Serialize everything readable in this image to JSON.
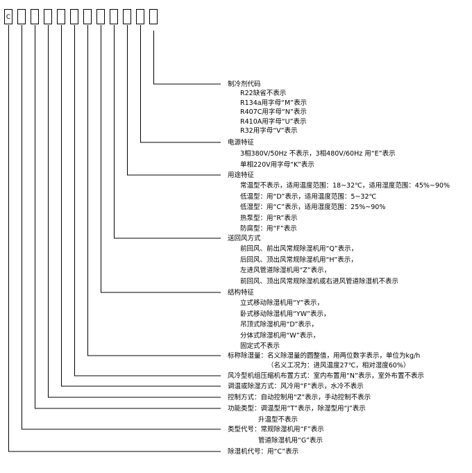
{
  "code_prefix": "C",
  "code_box_count": 12,
  "groups": [
    {
      "title": "除湿机代号：用“C”表示",
      "items": []
    },
    {
      "title": "类型代号：常规除湿机用“F”表示",
      "items": [
        "管道除湿机用“G”表示"
      ]
    },
    {
      "title": "功能类型：调温型用“T”表示，除湿型用“J”表示",
      "items": [
        "升温型不表示"
      ]
    },
    {
      "title": "控制方式：自动控制用“Z”表示，手动控制不表示",
      "items": []
    },
    {
      "title": "调温或除湿方式：风冷用“F”表示，水冷不表示",
      "items": []
    },
    {
      "title": "风冷型机组压缩机布置方式：室内布置用“N”表示，室外布置不表示",
      "items": []
    },
    {
      "title": "标称除湿量：名义除湿量的圆整值，用两位数字表示，单位为kg/h",
      "items": [
        "（名义工况为：进风温度27℃，相对湿度60%）"
      ]
    },
    {
      "title": "结构特征",
      "items": [
        "立式移动除湿机用“Y”表示，",
        "卧式移动除湿机用“YW”表示，",
        "吊顶式除湿机用“D”表示，",
        "分体式除湿机用“W”表示，",
        "固定式不表示"
      ]
    },
    {
      "title": "送回风方式",
      "items": [
        "前回风、前出风常规除湿机用“Q”表示，",
        "后回风、顶出风常规除湿机用“H”表示，",
        "左进风管道除湿机用“Z”表示，",
        "前回风、顶出风常规除湿机或右进风管道除湿机不表示"
      ]
    },
    {
      "title": "用途特征",
      "items": [
        "常温型不表示，适用温度范围：18~32℃，适用湿度范围：45%~90%",
        "低温型：用“D”表示，适用温度范围：5~32℃",
        "低湿型：用“C”表示，适用湿度范围：25%~90%",
        "热泵型：用“R”表示",
        "防腐型：用“F”表示"
      ]
    },
    {
      "title": "电源特征",
      "items": [
        "3相380V/50Hz 不表示，3相480V/60Hz 用“E”表示",
        "单相220V用字母“K”表示"
      ]
    },
    {
      "title": "制冷剂代码",
      "items": [
        "R22缺省不表示",
        "R134a用字母“M”表示",
        "R407C用字母“N”表示",
        "R410A用字母“U”表示",
        "R32用字母“V”表示"
      ]
    }
  ]
}
